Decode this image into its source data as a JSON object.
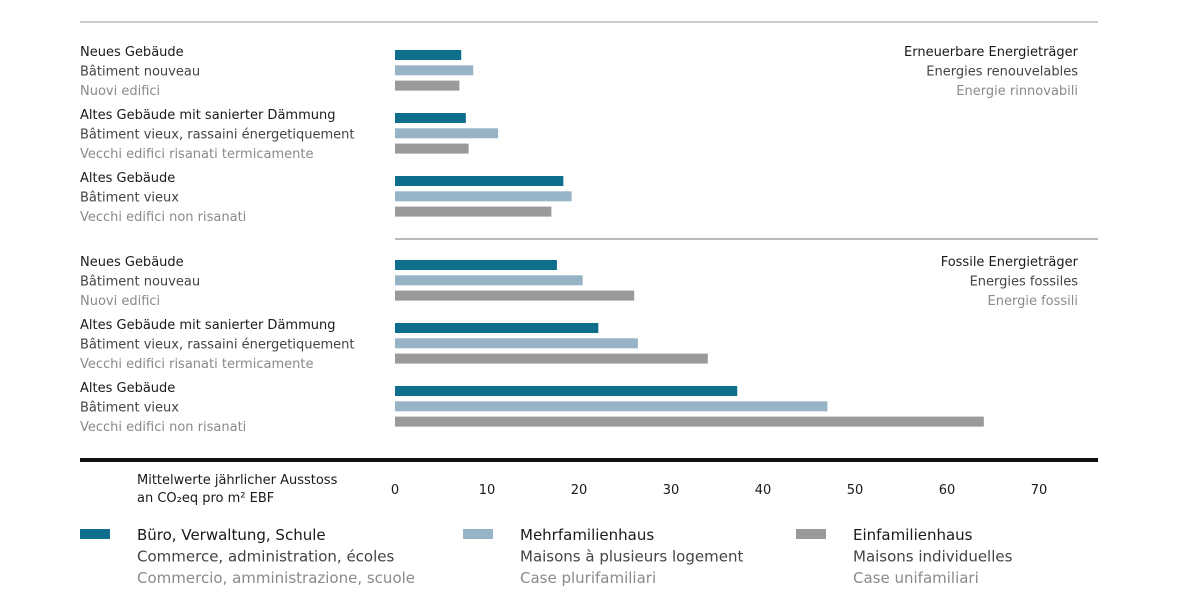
{
  "chart_data": {
    "type": "bar",
    "orientation": "horizontal",
    "xlim": [
      0,
      70
    ],
    "x_ticks": [
      0,
      10,
      20,
      30,
      40,
      50,
      60,
      70
    ],
    "axis_label": [
      "Mittelwerte jährlicher Ausstoss",
      "an CO₂eq pro m² EBF"
    ],
    "series": [
      {
        "name": [
          "Büro, Verwaltung, Schule",
          "Commerce, administration, écoles",
          "Commercio, amministrazione, scuole"
        ],
        "color": "#0e6e8c"
      },
      {
        "name": [
          "Mehrfamilienhaus",
          "Maisons à plusieurs logement",
          "Case plurifamiliari"
        ],
        "color": "#96b4c6"
      },
      {
        "name": [
          "Einfamilienhaus",
          "Maisons individuelles",
          "Case unifamiliari"
        ],
        "color": "#9a9a9a"
      }
    ],
    "groups": [
      {
        "title": [
          "Erneuerbare Energieträger",
          "Energies renouvelables",
          "Energie rinnovabili"
        ],
        "categories": [
          {
            "label": [
              "Neues Gebäude",
              "Bâtiment nouveau",
              "Nuovi edifici"
            ],
            "values": [
              7.2,
              8.5,
              7.0
            ]
          },
          {
            "label": [
              "Altes Gebäude mit sanierter Dämmung",
              "Bâtiment vieux, rassaini énergetiquement",
              "Vecchi edifici risanati termicamente"
            ],
            "values": [
              7.7,
              11.2,
              8.0
            ]
          },
          {
            "label": [
              "Altes Gebäude",
              "Bâtiment vieux",
              "Vecchi edifici non risanati"
            ],
            "values": [
              18.3,
              19.2,
              17.0
            ]
          }
        ]
      },
      {
        "title": [
          "Fossile Energieträger",
          "Energies fossiles",
          "Energie fossili"
        ],
        "categories": [
          {
            "label": [
              "Neues Gebäude",
              "Bâtiment nouveau",
              "Nuovi edifici"
            ],
            "values": [
              17.6,
              20.4,
              26.0
            ]
          },
          {
            "label": [
              "Altes Gebäude mit sanierter Dämmung",
              "Bâtiment vieux, rassaini énergetiquement",
              "Vecchi edifici risanati termicamente"
            ],
            "values": [
              22.1,
              26.4,
              34.0
            ]
          },
          {
            "label": [
              "Altes Gebäude",
              "Bâtiment vieux",
              "Vecchi edifici non risanati"
            ],
            "values": [
              37.2,
              47.0,
              64.0
            ]
          }
        ]
      }
    ]
  }
}
